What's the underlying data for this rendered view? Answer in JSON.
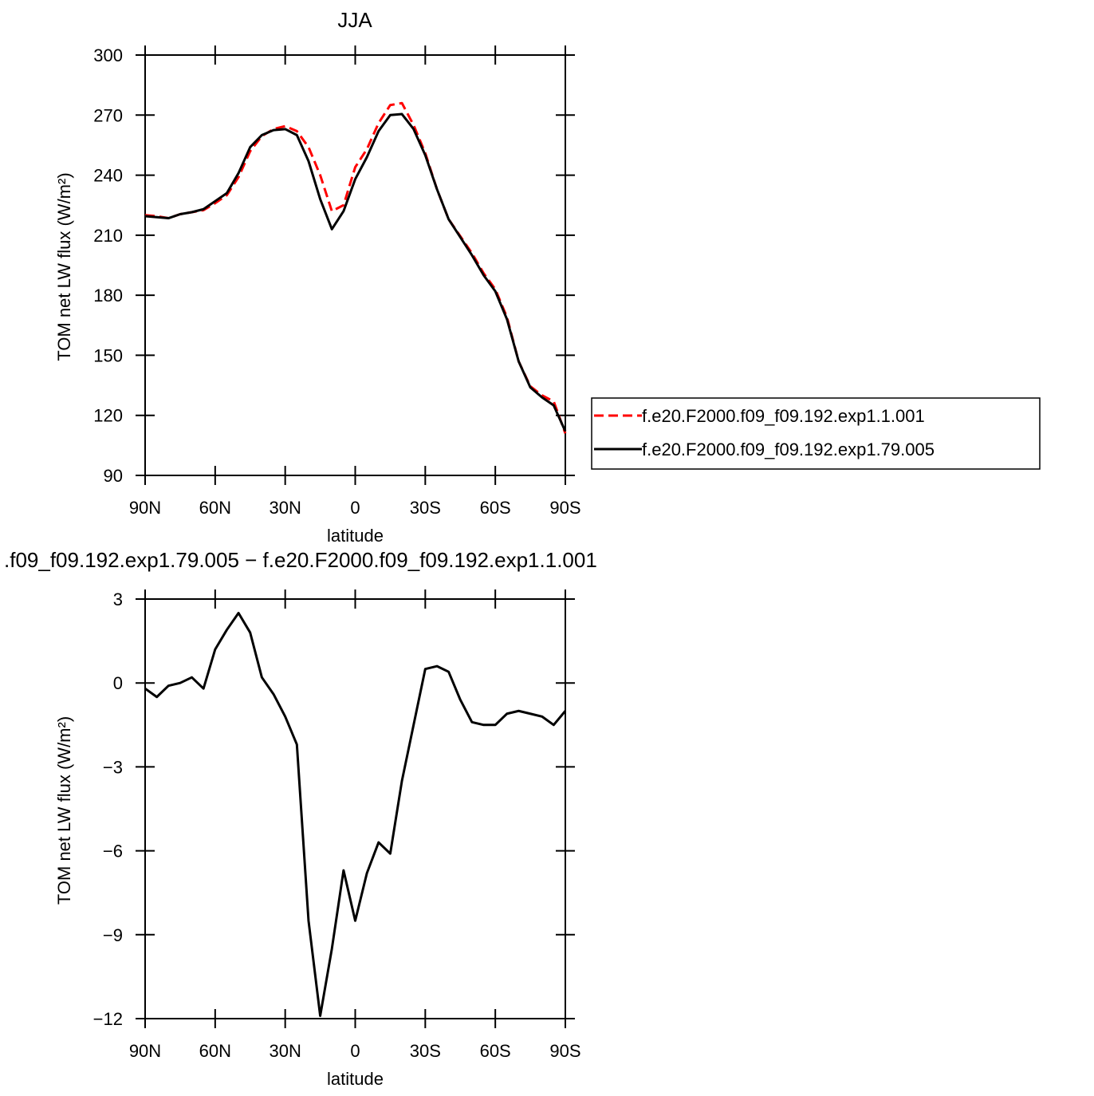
{
  "chart_data": [
    {
      "type": "line",
      "title": "JJA",
      "xlabel": "latitude",
      "ylabel": "TOM net LW flux (W/m²)",
      "x": [
        90,
        85,
        80,
        75,
        70,
        65,
        60,
        55,
        50,
        45,
        40,
        35,
        30,
        25,
        20,
        15,
        10,
        5,
        0,
        -5,
        -10,
        -15,
        -20,
        -25,
        -30,
        -35,
        -40,
        -45,
        -50,
        -55,
        -60,
        -65,
        -70,
        -75,
        -80,
        -85,
        -90
      ],
      "series": [
        {
          "name": "f.e20.F2000.f09_f09.192.exp1.1.001",
          "color": "#ff0000",
          "line_style": "dashed",
          "values": [
            220,
            219.5,
            218.5,
            220.5,
            221.5,
            222.5,
            226,
            230,
            239,
            252,
            259.5,
            263,
            264.5,
            262,
            254,
            240,
            222,
            225,
            244,
            253,
            266,
            275,
            276,
            265,
            251,
            233,
            218,
            209.5,
            201,
            191,
            183,
            169,
            147,
            134.5,
            130,
            127,
            111
          ]
        },
        {
          "name": "f.e20.F2000.f09_f09.192.exp1.79.005",
          "color": "#000000",
          "line_style": "solid",
          "values": [
            219.5,
            219,
            218.5,
            220.5,
            221.5,
            223,
            227,
            231,
            241,
            254,
            260,
            262.5,
            263,
            260,
            247,
            228,
            213,
            222,
            238,
            249,
            262,
            270,
            270.5,
            263,
            250,
            233,
            218,
            209,
            200,
            190,
            182,
            168,
            147,
            134,
            129,
            125,
            112
          ]
        }
      ],
      "xlim": [
        90,
        -90
      ],
      "xticks": [
        {
          "value": 90,
          "label": "90N"
        },
        {
          "value": 60,
          "label": "60N"
        },
        {
          "value": 30,
          "label": "30N"
        },
        0,
        {
          "value": -30,
          "label": "30S"
        },
        {
          "value": -60,
          "label": "60S"
        },
        {
          "value": -90,
          "label": "90S"
        }
      ],
      "ylim": [
        90,
        300
      ],
      "yticks": [
        90,
        120,
        150,
        180,
        210,
        240,
        270,
        300
      ],
      "legend": "right"
    },
    {
      "type": "line",
      "title": ".f09_f09.192.exp1.79.005 − f.e20.F2000.f09_f09.192.exp1.1.001",
      "xlabel": "latitude",
      "ylabel": "TOM net LW flux (W/m²)",
      "x": [
        90,
        85,
        80,
        75,
        70,
        65,
        60,
        55,
        50,
        45,
        40,
        35,
        30,
        25,
        20,
        15,
        10,
        5,
        0,
        -5,
        -10,
        -15,
        -20,
        -25,
        -30,
        -35,
        -40,
        -45,
        -50,
        -55,
        -60,
        -65,
        -70,
        -75,
        -80,
        -85,
        -90
      ],
      "series": [
        {
          "color": "#000000",
          "line_style": "solid",
          "values": [
            -0.2,
            -0.5,
            -0.1,
            0,
            0.2,
            -0.2,
            1.2,
            1.9,
            2.5,
            1.8,
            0.2,
            -0.4,
            -1.2,
            -2.2,
            -8.5,
            -11.9,
            -9.5,
            -6.7,
            -8.5,
            -6.8,
            -5.7,
            -6.1,
            -3.5,
            -1.5,
            0.5,
            0.6,
            0.4,
            -0.6,
            -1.4,
            -1.5,
            -1.5,
            -1.1,
            -1.0,
            -1.1,
            -1.2,
            -1.5,
            -1.0
          ]
        }
      ],
      "xlim": [
        90,
        -90
      ],
      "xticks": [
        {
          "value": 90,
          "label": "90N"
        },
        {
          "value": 60,
          "label": "60N"
        },
        {
          "value": 30,
          "label": "30N"
        },
        0,
        {
          "value": -30,
          "label": "30S"
        },
        {
          "value": -60,
          "label": "60S"
        },
        {
          "value": -90,
          "label": "90S"
        }
      ],
      "ylim": [
        -12,
        3
      ],
      "yticks": [
        {
          "value": -12,
          "label": "−12"
        },
        {
          "value": -9,
          "label": "−9"
        },
        {
          "value": -6,
          "label": "−6"
        },
        {
          "value": -3,
          "label": "−3"
        },
        0,
        3
      ]
    }
  ]
}
